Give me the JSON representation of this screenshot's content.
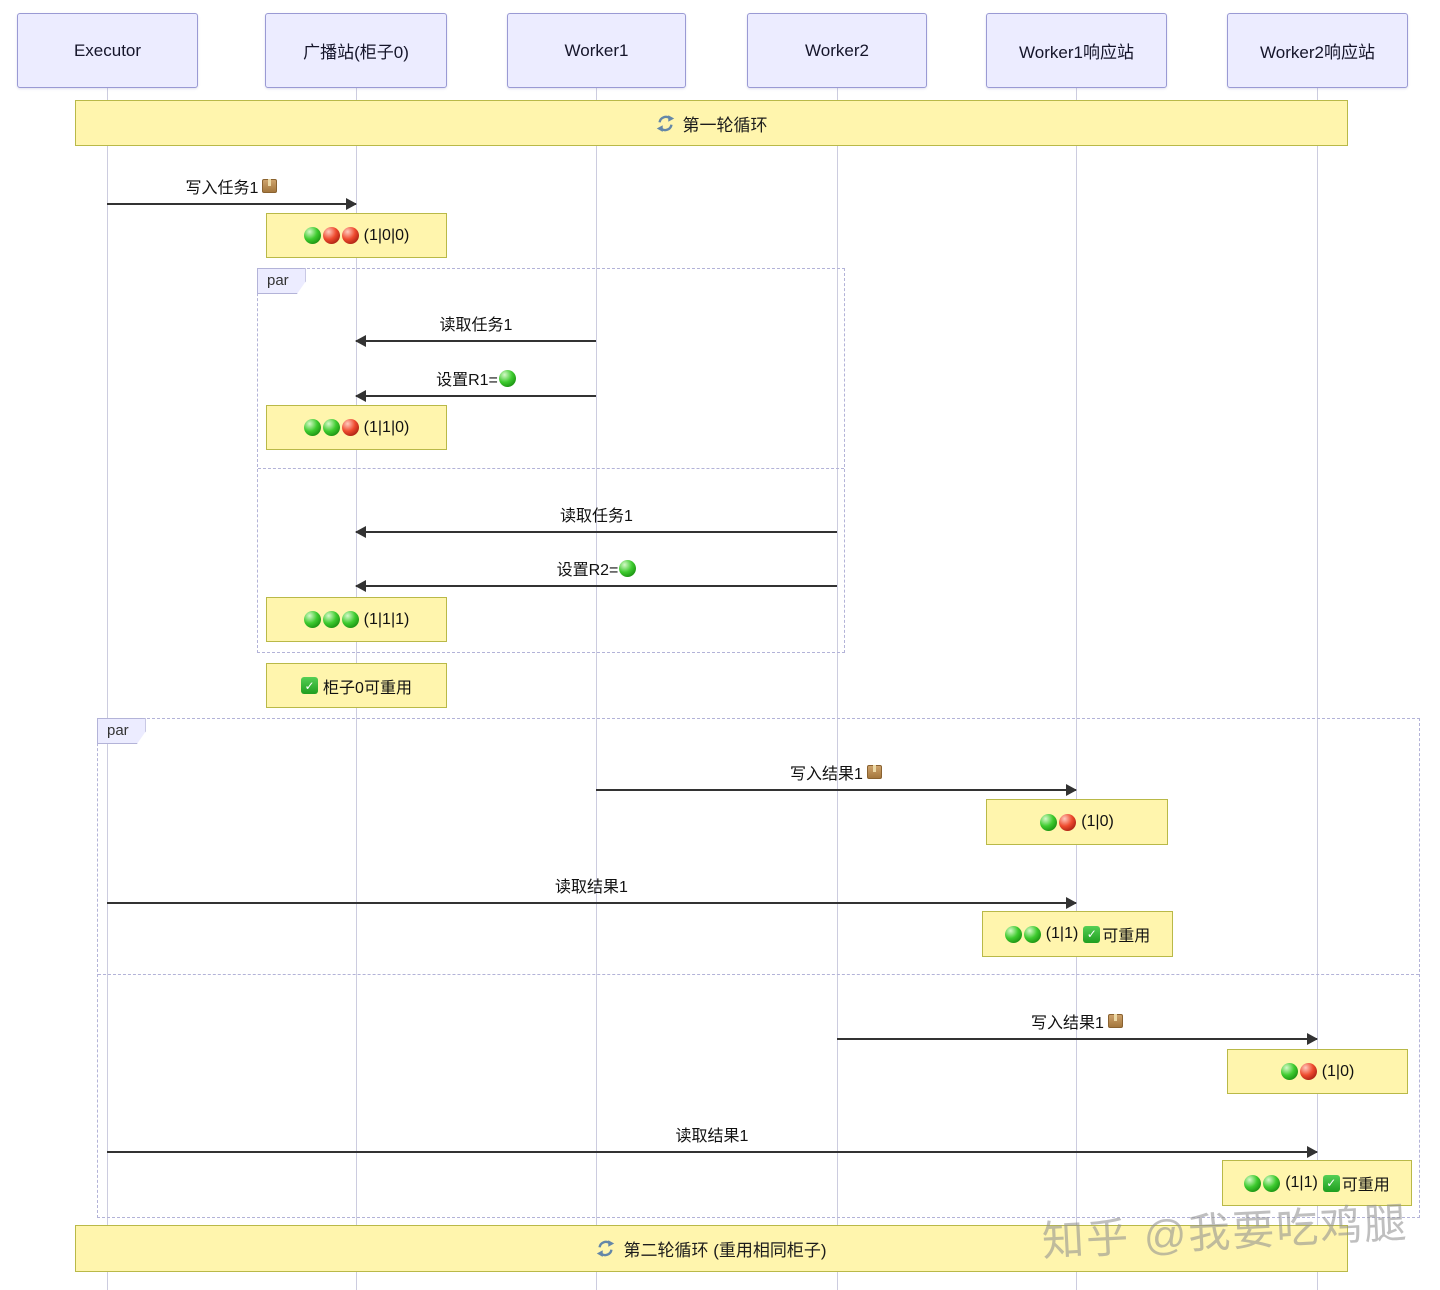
{
  "participants": [
    {
      "label": "Executor"
    },
    {
      "label": "广播站(柜子0)"
    },
    {
      "label": "Worker1"
    },
    {
      "label": "Worker2"
    },
    {
      "label": "Worker1响应站"
    },
    {
      "label": "Worker2响应站"
    }
  ],
  "loops": {
    "round1": "第一轮循环",
    "round2": "第二轮循环 (重用相同柜子)"
  },
  "par_label": "par",
  "messages": {
    "write_task1": "写入任务1",
    "read_task1_by_w1": "读取任务1",
    "set_r1": "设置R1=",
    "read_task1_by_w2": "读取任务1",
    "set_r2": "设置R2=",
    "write_result1_by_w1": "写入结果1",
    "read_result1_from_w1": "读取结果1",
    "write_result1_by_w2": "写入结果1",
    "read_result1_from_w2": "读取结果1"
  },
  "notes": {
    "n1": {
      "balls": [
        "green",
        "red",
        "red"
      ],
      "text": "(1|0|0)"
    },
    "n2": {
      "balls": [
        "green",
        "green",
        "red"
      ],
      "text": "(1|1|0)"
    },
    "n3": {
      "balls": [
        "green",
        "green",
        "green"
      ],
      "text": "(1|1|1)"
    },
    "n4": {
      "text": "柜子0可重用"
    },
    "n5": {
      "balls": [
        "green",
        "red"
      ],
      "text": "(1|0)"
    },
    "n6": {
      "balls": [
        "green",
        "green"
      ],
      "text": "(1|1)",
      "badge": "可重用"
    },
    "n7": {
      "balls": [
        "green",
        "red"
      ],
      "text": "(1|0)"
    },
    "n8": {
      "balls": [
        "green",
        "green"
      ],
      "text": "(1|1)",
      "badge": "可重用"
    }
  },
  "icons": {
    "loop-icon": "circular refresh arrows (🔄), steel blue",
    "package-icon": "cardboard box (📦)",
    "check-icon": "white check on green square (✅)",
    "green-ball-icon": "glossy green sphere (🟢)",
    "red-ball-icon": "glossy red sphere (🔴)",
    "arrowhead-icon": "solid filled triangle arrowhead"
  },
  "colors": {
    "note_bg": "#fff5ad",
    "note_border": "#aaaa33",
    "actor_bg": "#ececff",
    "actor_border": "#9a9ad4",
    "par_border": "#b3b3d8",
    "lifeline": "#ccccdf",
    "arrow": "#333333",
    "ball_green": "#2ebd2e",
    "ball_red": "#e0301e",
    "check_green": "#2aa12a",
    "loop_icon": "#6487a8",
    "watermark_gray": "#919191"
  },
  "watermark": "知乎 @我要吃鸡腿"
}
